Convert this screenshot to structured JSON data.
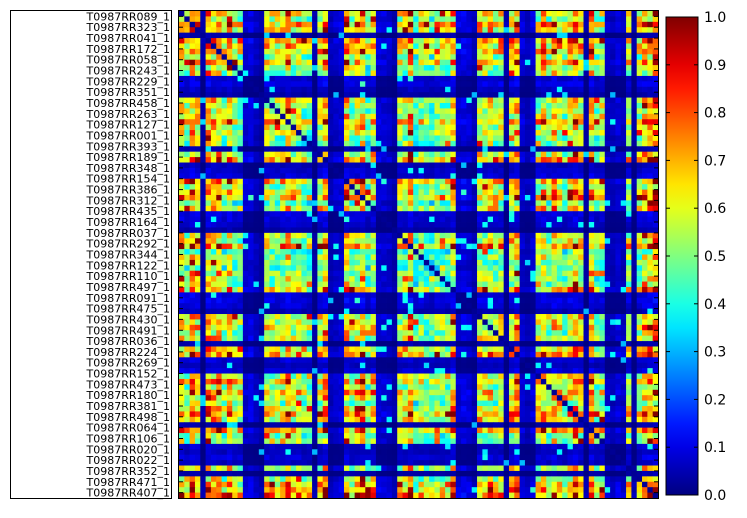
{
  "chart_data": {
    "type": "heatmap",
    "title": "",
    "xlabel": "",
    "ylabel": "",
    "colormap": "jet",
    "colorbar": {
      "vmin": 0.0,
      "vmax": 1.0,
      "ticks": [
        "0.0",
        "0.1",
        "0.2",
        "0.3",
        "0.4",
        "0.5",
        "0.6",
        "0.7",
        "0.8",
        "0.9",
        "1.0"
      ]
    },
    "row_labels": [
      "T0987RR089_1",
      "T0987RR323_1",
      "T0987RR041_1",
      "T0987RR172_1",
      "T0987RR058_1",
      "T0987RR243_1",
      "T0987RR229_1",
      "T0987RR351_1",
      "T0987RR458_1",
      "T0987RR263_1",
      "T0987RR127_1",
      "T0987RR001_1",
      "T0987RR393_1",
      "T0987RR189_1",
      "T0987RR348_1",
      "T0987RR154_1",
      "T0987RR386_1",
      "T0987RR312_1",
      "T0987RR435_1",
      "T0987RR164_1",
      "T0987RR037_1",
      "T0987RR292_1",
      "T0987RR344_1",
      "T0987RR122_1",
      "T0987RR110_1",
      "T0987RR497_1",
      "T0987RR091_1",
      "T0987RR475_1",
      "T0987RR430_1",
      "T0987RR491_1",
      "T0987RR036_1",
      "T0987RR224_1",
      "T0987RR269_1",
      "T0987RR152_1",
      "T0987RR473_1",
      "T0987RR180_1",
      "T0987RR381_1",
      "T0987RR498_1",
      "T0987RR064_1",
      "T0987RR106_1",
      "T0987RR020_1",
      "T0987RR022_1",
      "T0987RR352_1",
      "T0987RR471_1",
      "T0987RR407_1"
    ],
    "matrix_size": 90,
    "values_note_rows": "similarity matrix, values in [0,1]"
  }
}
